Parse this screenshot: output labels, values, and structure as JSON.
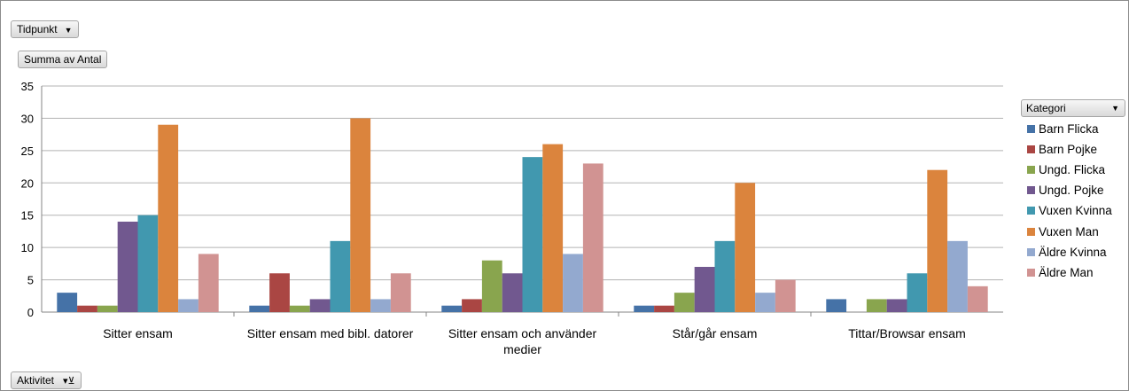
{
  "filters": {
    "tidpunkt_label": "Tidpunkt",
    "summa_label": "Summa av Antal",
    "aktivitet_label": "Aktivitet",
    "kategori_label": "Kategori"
  },
  "icons": {
    "dropdown": "chevron-down-icon",
    "filter": "filter-icon"
  },
  "chart_data": {
    "type": "bar",
    "title": "",
    "xlabel": "",
    "ylabel": "",
    "ylim": [
      0,
      35
    ],
    "yticks": [
      "0",
      "5",
      "10",
      "15",
      "20",
      "25",
      "30",
      "35"
    ],
    "grid": true,
    "legend_position": "right",
    "categories": [
      "Sitter ensam",
      "Sitter ensam med bibl. datorer",
      "Sitter ensam och använder medier",
      "Står/går ensam",
      "Tittar/Browsar ensam"
    ],
    "category_lines": [
      [
        "Sitter ensam"
      ],
      [
        "Sitter ensam med bibl. datorer"
      ],
      [
        "Sitter ensam och använder",
        "medier"
      ],
      [
        "Står/går ensam"
      ],
      [
        "Tittar/Browsar ensam"
      ]
    ],
    "series": [
      {
        "name": "Barn Flicka",
        "color": "#4572a7",
        "values": [
          3,
          1,
          1,
          1,
          2
        ]
      },
      {
        "name": "Barn Pojke",
        "color": "#aa4643",
        "values": [
          1,
          6,
          2,
          1,
          0
        ]
      },
      {
        "name": "Ungd. Flicka",
        "color": "#89a54e",
        "values": [
          1,
          1,
          8,
          3,
          2
        ]
      },
      {
        "name": "Ungd. Pojke",
        "color": "#71588f",
        "values": [
          14,
          2,
          6,
          7,
          2
        ]
      },
      {
        "name": "Vuxen Kvinna",
        "color": "#4198af",
        "values": [
          15,
          11,
          24,
          11,
          6
        ]
      },
      {
        "name": "Vuxen Man",
        "color": "#db843d",
        "values": [
          29,
          30,
          26,
          20,
          22
        ]
      },
      {
        "name": "Äldre Kvinna",
        "color": "#93a9cf",
        "values": [
          2,
          2,
          9,
          3,
          11
        ]
      },
      {
        "name": "Äldre Man",
        "color": "#d19392",
        "values": [
          9,
          6,
          23,
          5,
          4
        ]
      }
    ]
  }
}
